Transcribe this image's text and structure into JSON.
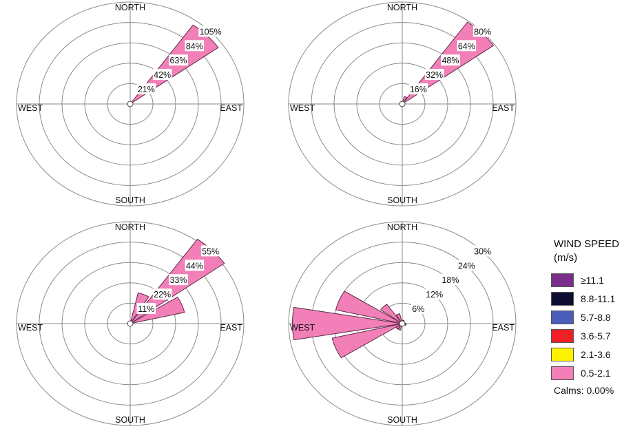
{
  "legend": {
    "title": "WIND SPEED",
    "unit": "(m/s)",
    "items": [
      {
        "label": "≥11.1",
        "color": "#7b2d8b"
      },
      {
        "label": "8.8-11.1",
        "color": "#0e0e33"
      },
      {
        "label": "5.7-8.8",
        "color": "#4a5db8"
      },
      {
        "label": "3.6-5.7",
        "color": "#ee2024"
      },
      {
        "label": "2.1-3.6",
        "color": "#fff200"
      },
      {
        "label": "0.5-2.1",
        "color": "#f27fb8"
      }
    ],
    "calms": "Calms: 0.00%"
  },
  "chart_data": [
    {
      "type": "windrose",
      "directions": {
        "north": "NORTH",
        "east": "EAST",
        "south": "SOUTH",
        "west": "WEST"
      },
      "ring_values": [
        21,
        42,
        63,
        84,
        105
      ],
      "ring_labels": [
        "21%",
        "42%",
        "63%",
        "84%",
        "105%"
      ],
      "series": [
        {
          "speed_bin": "0.5-2.1",
          "petals": [
            {
              "direction_deg": 45,
              "frequency_pct": 100
            }
          ]
        }
      ]
    },
    {
      "type": "windrose",
      "directions": {
        "north": "NORTH",
        "east": "EAST",
        "south": "SOUTH",
        "west": "WEST"
      },
      "ring_values": [
        16,
        32,
        48,
        64,
        80
      ],
      "ring_labels": [
        "16%",
        "32%",
        "48%",
        "64%",
        "80%"
      ],
      "series": [
        {
          "speed_bin": "0.5-2.1",
          "petals": [
            {
              "direction_deg": 22.5,
              "frequency_pct": 6
            },
            {
              "direction_deg": 45,
              "frequency_pct": 79
            }
          ]
        }
      ]
    },
    {
      "type": "windrose",
      "directions": {
        "north": "NORTH",
        "east": "EAST",
        "south": "SOUTH",
        "west": "WEST"
      },
      "ring_values": [
        11,
        22,
        33,
        44,
        55
      ],
      "ring_labels": [
        "11%",
        "22%",
        "33%",
        "44%",
        "55%"
      ],
      "series": [
        {
          "speed_bin": "0.5-2.1",
          "petals": [
            {
              "direction_deg": 22.5,
              "frequency_pct": 17
            },
            {
              "direction_deg": 45,
              "frequency_pct": 56
            },
            {
              "direction_deg": 67.5,
              "frequency_pct": 27
            }
          ]
        }
      ]
    },
    {
      "type": "windrose",
      "directions": {
        "north": "NORTH",
        "east": "EAST",
        "south": "SOUTH",
        "west": "WEST"
      },
      "ring_values": [
        6,
        12,
        18,
        24,
        30
      ],
      "ring_labels": [
        "6%",
        "12%",
        "18%",
        "24%",
        "30%"
      ],
      "series": [
        {
          "speed_bin": "0.5-2.1",
          "petals": [
            {
              "direction_deg": 0,
              "frequency_pct": 1
            },
            {
              "direction_deg": 22.5,
              "frequency_pct": 1
            },
            {
              "direction_deg": 90,
              "frequency_pct": 1
            },
            {
              "direction_deg": 112.5,
              "frequency_pct": 1
            },
            {
              "direction_deg": 202.5,
              "frequency_pct": 2
            },
            {
              "direction_deg": 225,
              "frequency_pct": 2
            },
            {
              "direction_deg": 247.5,
              "frequency_pct": 19
            },
            {
              "direction_deg": 270,
              "frequency_pct": 29
            },
            {
              "direction_deg": 292.5,
              "frequency_pct": 18
            },
            {
              "direction_deg": 315,
              "frequency_pct": 7
            },
            {
              "direction_deg": 337.5,
              "frequency_pct": 3
            }
          ]
        }
      ]
    }
  ]
}
